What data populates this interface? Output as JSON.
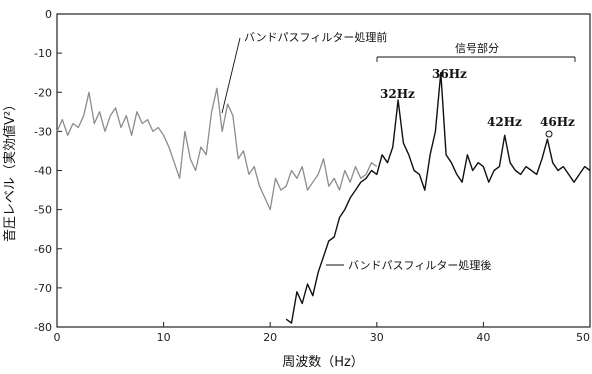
{
  "chart_data": {
    "type": "line",
    "title": "",
    "xlabel": "周波数（Hz）",
    "ylabel": "音圧レベル（実効値V²）",
    "xlim": [
      0,
      50
    ],
    "ylim": [
      -80,
      0
    ],
    "x_ticks": [
      0,
      10,
      20,
      30,
      40,
      50
    ],
    "y_ticks": [
      0,
      -10,
      -20,
      -30,
      -40,
      -50,
      -60,
      -70,
      -80
    ],
    "x_tick_labels": [
      "0",
      "10",
      "20",
      "30",
      "40",
      "50"
    ],
    "y_tick_labels": [
      "0",
      "-10",
      "-20",
      "-30",
      "-40",
      "-50",
      "-60",
      "-70",
      "-80"
    ],
    "grid": false,
    "series": [
      {
        "name": "バンドパスフィルター処理前",
        "color": "#8c8c8c",
        "x": [
          0,
          0.5,
          1,
          1.5,
          2,
          2.5,
          3,
          3.5,
          4,
          4.5,
          5,
          5.5,
          6,
          6.5,
          7,
          7.5,
          8,
          8.5,
          9,
          9.5,
          10,
          10.5,
          11,
          11.5,
          12,
          12.5,
          13,
          13.5,
          14,
          14.5,
          15,
          15.5,
          16,
          16.5,
          17,
          17.5,
          18,
          18.5,
          19,
          19.5,
          20,
          20.5,
          21,
          21.5,
          22,
          22.5,
          23,
          23.5,
          24,
          24.5,
          25,
          25.5,
          26,
          26.5,
          27,
          27.5,
          28,
          28.5,
          29,
          29.5,
          30
        ],
        "values": [
          -30,
          -27,
          -31,
          -28,
          -29,
          -26,
          -20,
          -28,
          -25,
          -30,
          -26,
          -24,
          -29,
          -26,
          -31,
          -25,
          -28,
          -27,
          -30,
          -29,
          -31,
          -34,
          -38,
          -42,
          -30,
          -37,
          -40,
          -34,
          -36,
          -25,
          -19,
          -30,
          -23,
          -26,
          -37,
          -35,
          -41,
          -39,
          -44,
          -47,
          -50,
          -42,
          -45,
          -44,
          -40,
          -42,
          -39,
          -45,
          -43,
          -41,
          -37,
          -44,
          -42,
          -45,
          -40,
          -43,
          -39,
          -42,
          -41,
          -38,
          -39
        ]
      },
      {
        "name": "バンドパスフィルター処理後",
        "color": "#111111",
        "x": [
          21.5,
          22,
          22.5,
          23,
          23.5,
          24,
          24.5,
          25,
          25.5,
          26,
          26.5,
          27,
          27.5,
          28,
          28.5,
          29,
          29.5,
          30,
          30.5,
          31,
          31.5,
          32,
          32.5,
          33,
          33.5,
          34,
          34.5,
          35,
          35.5,
          36,
          36.5,
          37,
          37.5,
          38,
          38.5,
          39,
          39.5,
          40,
          40.5,
          41,
          41.5,
          42,
          42.5,
          43,
          43.5,
          44,
          44.5,
          45,
          45.5,
          46,
          46.5,
          47,
          47.5,
          48,
          48.5,
          49,
          49.5,
          50
        ],
        "values": [
          -78,
          -79,
          -71,
          -74,
          -69,
          -72,
          -66,
          -62,
          -58,
          -57,
          -52,
          -50,
          -47,
          -45,
          -43,
          -42,
          -40,
          -41,
          -36,
          -38,
          -34,
          -22,
          -33,
          -36,
          -40,
          -41,
          -45,
          -36,
          -30,
          -15,
          -36,
          -38,
          -41,
          -43,
          -36,
          -40,
          -38,
          -39,
          -43,
          -40,
          -39,
          -31,
          -38,
          -40,
          -41,
          -39,
          -40,
          -41,
          -37,
          -32,
          -38,
          -40,
          -39,
          -41,
          -43,
          -41,
          -39,
          -40
        ]
      }
    ],
    "annotations": {
      "before_label": "バンドパスフィルター処理前",
      "after_label": "バンドパスフィルター処理後",
      "signal_region_label": "信号部分",
      "peaks": [
        {
          "label": "32Hz",
          "x": 32,
          "y": -22
        },
        {
          "label": "36Hz",
          "x": 36,
          "y": -15
        },
        {
          "label": "42Hz",
          "x": 42,
          "y": -31
        },
        {
          "label": "46Hz",
          "x": 46,
          "y": -32
        }
      ]
    }
  }
}
